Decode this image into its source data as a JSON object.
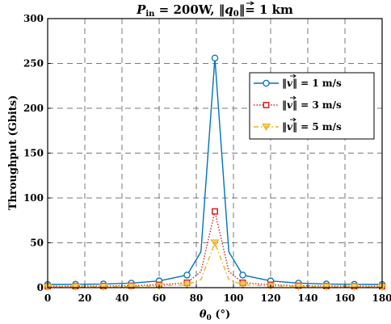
{
  "chart_data": {
    "type": "line",
    "title": "Pin = 200W, ||q0||= 1 km",
    "title_parts": {
      "p": "P",
      "p_sub": "in",
      "mid": " = 200W, ‖",
      "q": "q",
      "q_sub": "0",
      "end": "‖= 1 km"
    },
    "xlabel": "θ0 (°)",
    "xlabel_parts": {
      "theta": "θ",
      "sub": "0",
      "unit": " (°)"
    },
    "ylabel": "Throughput (Gbits)",
    "xlim": [
      0,
      180
    ],
    "ylim": [
      0,
      300
    ],
    "xticks": [
      "0",
      "20",
      "40",
      "60",
      "80",
      "100",
      "120",
      "140",
      "160",
      "180"
    ],
    "yticks": [
      "0",
      "50",
      "100",
      "150",
      "200",
      "250",
      "300"
    ],
    "grid": true,
    "legend_position": "right-upper",
    "x": [
      0,
      15,
      30,
      45,
      60,
      75,
      82.5,
      90,
      97.5,
      105,
      120,
      135,
      150,
      165,
      180
    ],
    "marker_x": [
      0,
      15,
      30,
      45,
      60,
      75,
      90,
      105,
      120,
      135,
      150,
      165,
      180
    ],
    "series": [
      {
        "name": "||v|| = 1 m/s",
        "label_parts": {
          "pre": "‖",
          "v": "v",
          "post": "‖ = 1 m/s"
        },
        "color": "#0072bd",
        "dash": "",
        "marker": "circle",
        "values": [
          3.5,
          3.7,
          4.0,
          5.0,
          7.5,
          14,
          40,
          256,
          40,
          14,
          7.5,
          5.0,
          4.0,
          3.7,
          3.5
        ]
      },
      {
        "name": "||v|| = 3 m/s",
        "label_parts": {
          "pre": "‖",
          "v": "v",
          "post": "‖ = 3 m/s"
        },
        "color": "#d62020",
        "dash": "1.5,2",
        "marker": "square",
        "values": [
          1.5,
          1.6,
          1.8,
          2.2,
          3.2,
          5.5,
          18,
          85,
          18,
          5.5,
          3.2,
          2.2,
          1.8,
          1.6,
          1.5
        ]
      },
      {
        "name": "||v|| = 5 m/s",
        "label_parts": {
          "pre": "‖",
          "v": "v",
          "post": "‖ = 5 m/s"
        },
        "color": "#edb120",
        "dash": "6,3,1.5,3",
        "marker": "triangle-down",
        "values": [
          0.8,
          0.9,
          1.0,
          1.3,
          1.9,
          3.2,
          9,
          50,
          9,
          3.2,
          1.9,
          1.3,
          1.0,
          0.9,
          0.8
        ]
      }
    ]
  }
}
